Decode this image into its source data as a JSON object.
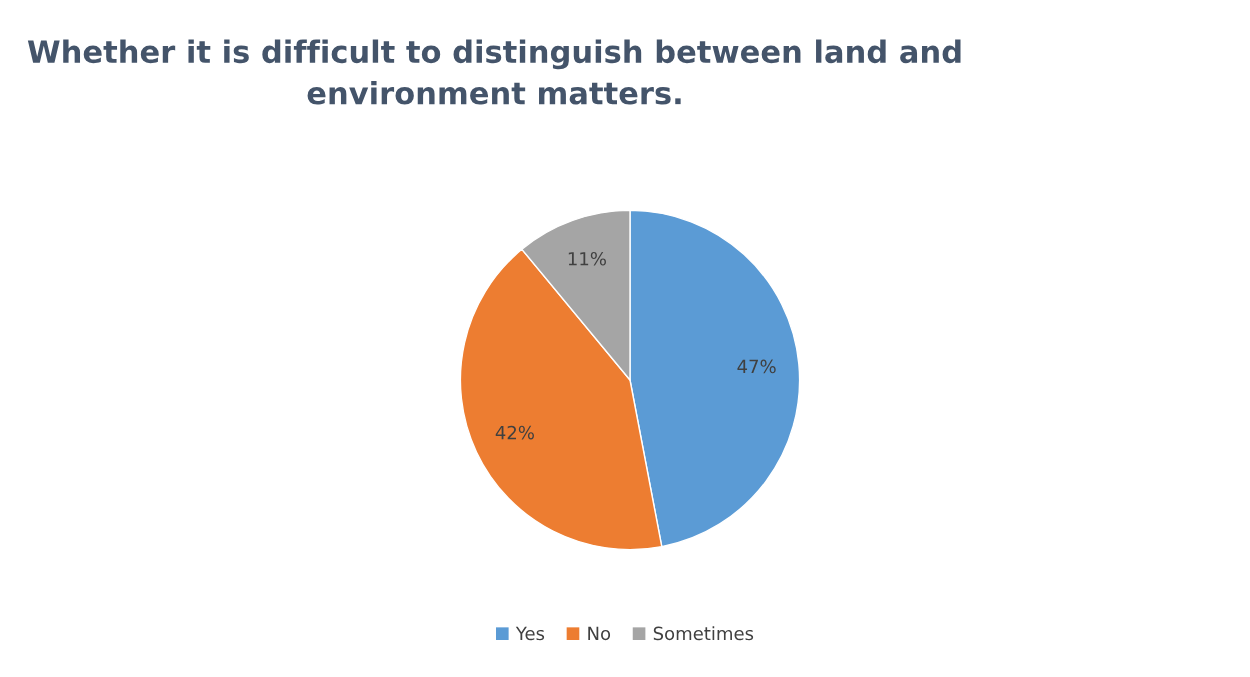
{
  "chart_data": {
    "type": "pie",
    "title": "Whether it is difficult to distinguish between land and\nenvironment matters.",
    "categories": [
      "Yes",
      "No",
      "Sometimes"
    ],
    "values": [
      47,
      42,
      11
    ],
    "value_labels": [
      "47%",
      "42%",
      "11%"
    ],
    "colors": [
      "#5b9bd5",
      "#ed7d31",
      "#a5a5a5"
    ],
    "legend": "bottom"
  }
}
